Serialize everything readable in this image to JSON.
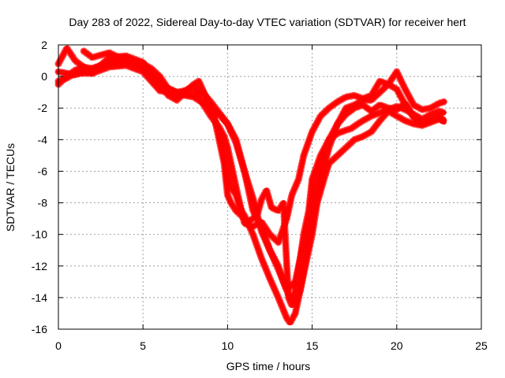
{
  "chart_data": {
    "type": "line",
    "title": "Day 283 of 2022, Sidereal Day-to-day VTEC variation (SDTVAR) for receiver hert",
    "xlabel": "GPS time / hours",
    "ylabel": "SDTVAR / TECUs",
    "xlim": [
      0,
      25
    ],
    "ylim": [
      -16,
      2
    ],
    "xticks": [
      0,
      5,
      10,
      15,
      20,
      25
    ],
    "yticks": [
      -16,
      -14,
      -12,
      -10,
      -8,
      -6,
      -4,
      -2,
      0,
      2
    ],
    "xtick_labels": [
      "0",
      "5",
      "10",
      "15",
      "20",
      "25"
    ],
    "ytick_labels": [
      "-16",
      "-14",
      "-12",
      "-10",
      "-8",
      "-6",
      "-4",
      "-2",
      "0",
      "2"
    ],
    "grid": true,
    "series_color": "#ff0000",
    "series": [
      {
        "x": [
          0.0,
          0.5,
          1.0,
          1.5,
          2.0,
          3.0,
          4.0,
          5.0,
          6.0,
          6.5,
          7.0,
          7.5,
          8.0,
          8.3,
          8.8,
          9.2,
          9.5,
          9.8,
          10.0,
          10.2,
          10.5,
          10.8,
          11.0,
          11.2,
          11.5,
          11.8,
          12.0,
          12.3,
          12.6,
          13.0,
          13.3,
          13.6,
          13.8,
          14.0,
          14.3,
          14.5,
          14.8,
          15.0,
          15.5,
          16.0,
          16.5,
          17.0,
          17.3,
          17.7,
          18.0,
          18.5,
          19.0,
          19.5,
          20.0,
          20.5,
          21.0,
          21.5,
          22.0,
          22.5,
          22.8
        ],
        "y": [
          0.3,
          0.2,
          0.1,
          0.3,
          0.5,
          0.8,
          1.0,
          0.6,
          -0.5,
          -1.2,
          -1.5,
          -1.0,
          -0.5,
          -0.3,
          -1.5,
          -2.5,
          -4.0,
          -5.5,
          -7.5,
          -8.0,
          -8.5,
          -8.8,
          -9.0,
          -9.2,
          -9.0,
          -8.6,
          -7.8,
          -7.2,
          -8.3,
          -8.5,
          -8.0,
          -14.0,
          -14.5,
          -13.5,
          -11.5,
          -10.0,
          -8.5,
          -6.5,
          -5.0,
          -4.0,
          -3.6,
          -3.4,
          -3.3,
          -3.0,
          -2.8,
          -2.5,
          -2.3,
          -2.1,
          -1.9,
          -2.1,
          -2.4,
          -2.7,
          -2.4,
          -2.2,
          -2.3
        ]
      },
      {
        "x": [
          0.0,
          0.5,
          1.0,
          1.5,
          2.0,
          3.0,
          4.0,
          5.0,
          6.0,
          7.0,
          8.0,
          9.0,
          9.5,
          9.8,
          10.0,
          10.3,
          10.6,
          11.0,
          11.5,
          12.0,
          12.5,
          13.0,
          13.5,
          13.8,
          14.2,
          14.5,
          15.0,
          15.5,
          16.0,
          16.5,
          17.0,
          17.5,
          18.0,
          18.5,
          19.0,
          19.5,
          20.0,
          20.5,
          21.0,
          21.5,
          22.0,
          22.5,
          22.8
        ],
        "y": [
          0.8,
          1.8,
          1.0,
          0.6,
          0.5,
          0.9,
          1.2,
          0.8,
          -0.5,
          -1.0,
          -0.8,
          -2.5,
          -3.2,
          -3.8,
          -4.5,
          -6.0,
          -7.5,
          -9.3,
          -9.5,
          -9.2,
          -10.0,
          -10.5,
          -9.0,
          -7.5,
          -6.5,
          -5.0,
          -3.5,
          -2.5,
          -2.0,
          -1.6,
          -1.3,
          -1.2,
          -1.4,
          -1.2,
          -0.3,
          -0.5,
          0.3,
          -0.8,
          -1.8,
          -2.1,
          -2.0,
          -1.7,
          -1.6
        ]
      },
      {
        "x": [
          0.0,
          0.5,
          1.0,
          2.0,
          3.0,
          4.0,
          5.0,
          6.0,
          7.0,
          8.0,
          9.0,
          9.5,
          9.8,
          10.0,
          10.2,
          10.5,
          10.8,
          11.0,
          11.5,
          12.0,
          12.5,
          13.0,
          13.5,
          13.7,
          14.0,
          14.3,
          14.6,
          15.0,
          15.3,
          15.7,
          16.0,
          16.5,
          17.0,
          17.5,
          18.0,
          18.5,
          19.0,
          19.5,
          20.0,
          20.5,
          21.0,
          21.5,
          22.0,
          22.5,
          22.8
        ],
        "y": [
          -0.3,
          -0.1,
          0.2,
          0.2,
          0.6,
          0.7,
          0.3,
          -0.9,
          -1.1,
          -1.3,
          -2.0,
          -3.5,
          -5.0,
          -6.0,
          -7.0,
          -7.5,
          -8.5,
          -8.8,
          -10.0,
          -11.5,
          -12.8,
          -14.0,
          -15.3,
          -15.6,
          -15.0,
          -13.5,
          -12.0,
          -10.0,
          -8.0,
          -6.5,
          -5.5,
          -5.0,
          -4.5,
          -4.0,
          -3.8,
          -3.5,
          -2.8,
          -2.2,
          -2.5,
          -2.8,
          -3.0,
          -3.1,
          -2.9,
          -2.7,
          -2.8
        ]
      },
      {
        "x": [
          1.5,
          2.0,
          3.0,
          4.0,
          5.0,
          5.5,
          6.0,
          6.5,
          7.0,
          8.0,
          8.5,
          9.0,
          9.5,
          10.0,
          10.5,
          11.0,
          11.5,
          12.0,
          12.5,
          13.0,
          13.3,
          13.6,
          14.0,
          14.3,
          14.7,
          15.0,
          15.5,
          16.0,
          16.5,
          17.0,
          17.5,
          18.0,
          18.5,
          19.0,
          19.5,
          20.0,
          20.5,
          21.0,
          21.5,
          22.0,
          22.5,
          22.8
        ],
        "y": [
          1.6,
          1.2,
          1.5,
          1.0,
          0.8,
          0.5,
          0.0,
          -0.8,
          -1.0,
          -1.2,
          -1.0,
          -1.6,
          -2.3,
          -3.0,
          -4.2,
          -6.0,
          -7.7,
          -9.8,
          -11.0,
          -12.0,
          -13.0,
          -13.8,
          -14.3,
          -13.5,
          -11.0,
          -9.0,
          -6.5,
          -4.5,
          -3.0,
          -2.0,
          -1.8,
          -1.5,
          -1.5,
          -1.0,
          -0.5,
          -0.8,
          -1.8,
          -2.5,
          -3.0,
          -2.8,
          -2.5,
          -2.8
        ]
      },
      {
        "x": [
          0.0,
          0.5,
          1.0,
          1.5,
          2.0,
          3.0,
          4.0,
          5.0,
          6.0,
          7.0,
          8.0,
          8.5,
          9.0,
          9.5,
          10.0,
          10.5,
          11.0,
          11.5,
          12.0,
          12.5,
          13.0,
          13.5,
          14.0,
          14.5,
          15.0,
          15.5,
          16.0,
          16.5,
          17.0,
          17.5,
          18.0,
          18.5,
          19.0,
          19.5,
          20.0,
          20.5,
          21.0,
          21.5,
          22.0,
          22.5,
          22.8
        ],
        "y": [
          -0.5,
          0.0,
          0.4,
          0.6,
          0.2,
          1.2,
          1.3,
          0.9,
          -0.6,
          -1.2,
          -0.6,
          -0.9,
          -1.8,
          -2.4,
          -3.0,
          -4.0,
          -6.0,
          -8.5,
          -9.5,
          -11.0,
          -12.2,
          -13.5,
          -13.0,
          -10.5,
          -8.0,
          -5.5,
          -4.0,
          -3.0,
          -2.4,
          -2.0,
          -1.8,
          -2.2,
          -1.8,
          -2.0,
          -2.1,
          -1.7,
          -2.6,
          -3.0,
          -2.8,
          -2.6,
          -2.9
        ]
      }
    ]
  }
}
